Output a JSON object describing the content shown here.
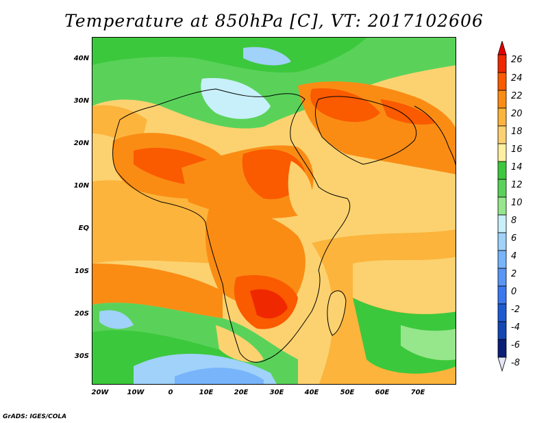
{
  "title": "Temperature at 850hPa [C], VT: 2017102606",
  "credit": "GrADS: IGES/COLA",
  "map": {
    "lat_labels": [
      "40N",
      "30N",
      "20N",
      "10N",
      "EQ",
      "10S",
      "20S",
      "30S"
    ],
    "lon_labels": [
      "20W",
      "10W",
      "0",
      "10E",
      "20E",
      "30E",
      "40E",
      "50E",
      "60E",
      "70E"
    ]
  },
  "colorbar": {
    "labels": [
      "26",
      "24",
      "22",
      "20",
      "18",
      "16",
      "14",
      "12",
      "10",
      "8",
      "6",
      "4",
      "2",
      "0",
      "-2",
      "-4",
      "-6",
      "-8"
    ],
    "colors": [
      "#f02800",
      "#fa5a00",
      "#fa8c14",
      "#fcb43c",
      "#fcd270",
      "#fef0a0",
      "#3cc83c",
      "#5ad25a",
      "#96e68c",
      "#c8f0fa",
      "#a0d2fa",
      "#78b4fa",
      "#5a96f5",
      "#3c78f0",
      "#1e5ad2",
      "#1446b4",
      "#0a1e78"
    ]
  }
}
